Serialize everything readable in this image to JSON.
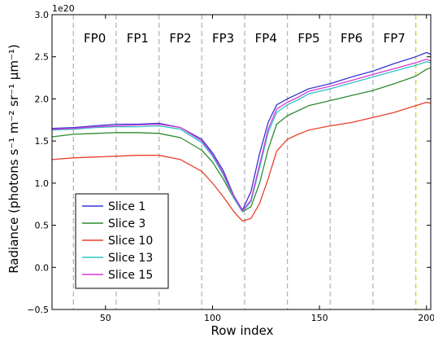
{
  "chart_data": {
    "type": "line",
    "xlabel": "Row index",
    "ylabel": "Radiance (photons s⁻¹ m⁻² sr⁻¹ μm⁻¹)",
    "y_offset_label": "1e20",
    "xlim": [
      25,
      202
    ],
    "ylim": [
      -0.5,
      3.0
    ],
    "x_ticks": [
      50,
      100,
      150,
      200
    ],
    "x_tick_labels": [
      "50",
      "100",
      "150",
      "200"
    ],
    "y_ticks": [
      -0.5,
      0.0,
      0.5,
      1.0,
      1.5,
      2.0,
      2.5,
      3.0
    ],
    "y_tick_labels": [
      "−0.5",
      "0.0",
      "0.5",
      "1.0",
      "1.5",
      "2.0",
      "2.5",
      "3.0"
    ],
    "grid": false,
    "legend_position": "lower-left",
    "footprints": [
      {
        "label": "FP0",
        "x_center": 45
      },
      {
        "label": "FP1",
        "x_center": 65
      },
      {
        "label": "FP2",
        "x_center": 85
      },
      {
        "label": "FP3",
        "x_center": 105
      },
      {
        "label": "FP4",
        "x_center": 125
      },
      {
        "label": "FP5",
        "x_center": 145
      },
      {
        "label": "FP6",
        "x_center": 165
      },
      {
        "label": "FP7",
        "x_center": 185
      }
    ],
    "boundary_lines": {
      "x": [
        35,
        55,
        75,
        95,
        115,
        135,
        155,
        175
      ],
      "color": "#b5b5b5"
    },
    "highlight_line": {
      "x": 195,
      "color": "#d4d44a"
    },
    "series": [
      {
        "name": "Slice 1",
        "color": "#3636d6",
        "x": [
          25,
          35,
          45,
          55,
          65,
          75,
          85,
          95,
          100,
          105,
          110,
          114,
          118,
          122,
          126,
          130,
          135,
          140,
          145,
          155,
          165,
          175,
          185,
          195,
          200,
          202
        ],
        "y": [
          1.65,
          1.66,
          1.68,
          1.7,
          1.7,
          1.71,
          1.66,
          1.52,
          1.36,
          1.15,
          0.85,
          0.68,
          0.9,
          1.35,
          1.72,
          1.93,
          2.0,
          2.06,
          2.12,
          2.18,
          2.26,
          2.33,
          2.42,
          2.5,
          2.55,
          2.53
        ]
      },
      {
        "name": "Slice 3",
        "color": "#2e8b2e",
        "x": [
          25,
          35,
          45,
          55,
          65,
          75,
          85,
          95,
          100,
          105,
          110,
          114,
          118,
          122,
          126,
          130,
          135,
          140,
          145,
          155,
          165,
          175,
          185,
          195,
          200,
          202
        ],
        "y": [
          1.55,
          1.58,
          1.59,
          1.6,
          1.6,
          1.59,
          1.54,
          1.39,
          1.25,
          1.05,
          0.82,
          0.66,
          0.72,
          1.0,
          1.4,
          1.7,
          1.8,
          1.86,
          1.92,
          1.98,
          2.04,
          2.1,
          2.18,
          2.27,
          2.35,
          2.37
        ]
      },
      {
        "name": "Slice 10",
        "color": "#e8402a",
        "x": [
          25,
          35,
          45,
          55,
          65,
          75,
          85,
          95,
          100,
          105,
          110,
          114,
          118,
          122,
          126,
          130,
          135,
          140,
          145,
          155,
          165,
          175,
          185,
          195,
          200,
          202
        ],
        "y": [
          1.28,
          1.3,
          1.31,
          1.32,
          1.33,
          1.33,
          1.28,
          1.14,
          1.0,
          0.84,
          0.66,
          0.55,
          0.58,
          0.76,
          1.05,
          1.38,
          1.52,
          1.58,
          1.63,
          1.68,
          1.72,
          1.78,
          1.84,
          1.92,
          1.96,
          1.95
        ]
      },
      {
        "name": "Slice 13",
        "color": "#2ec4c4",
        "x": [
          25,
          35,
          45,
          55,
          65,
          75,
          85,
          95,
          100,
          105,
          110,
          114,
          118,
          122,
          126,
          130,
          135,
          140,
          145,
          155,
          165,
          175,
          185,
          195,
          200,
          202
        ],
        "y": [
          1.63,
          1.64,
          1.66,
          1.67,
          1.67,
          1.68,
          1.64,
          1.48,
          1.32,
          1.1,
          0.82,
          0.66,
          0.78,
          1.18,
          1.6,
          1.84,
          1.93,
          1.99,
          2.06,
          2.12,
          2.19,
          2.26,
          2.33,
          2.4,
          2.44,
          2.43
        ]
      },
      {
        "name": "Slice 15",
        "color": "#d63ad6",
        "x": [
          25,
          35,
          45,
          55,
          65,
          75,
          85,
          95,
          100,
          105,
          110,
          114,
          118,
          122,
          126,
          130,
          135,
          140,
          145,
          155,
          165,
          175,
          185,
          195,
          200,
          202
        ],
        "y": [
          1.64,
          1.65,
          1.67,
          1.68,
          1.69,
          1.7,
          1.66,
          1.5,
          1.34,
          1.12,
          0.84,
          0.67,
          0.8,
          1.22,
          1.64,
          1.88,
          1.96,
          2.02,
          2.09,
          2.15,
          2.22,
          2.29,
          2.36,
          2.43,
          2.47,
          2.45
        ]
      }
    ]
  }
}
